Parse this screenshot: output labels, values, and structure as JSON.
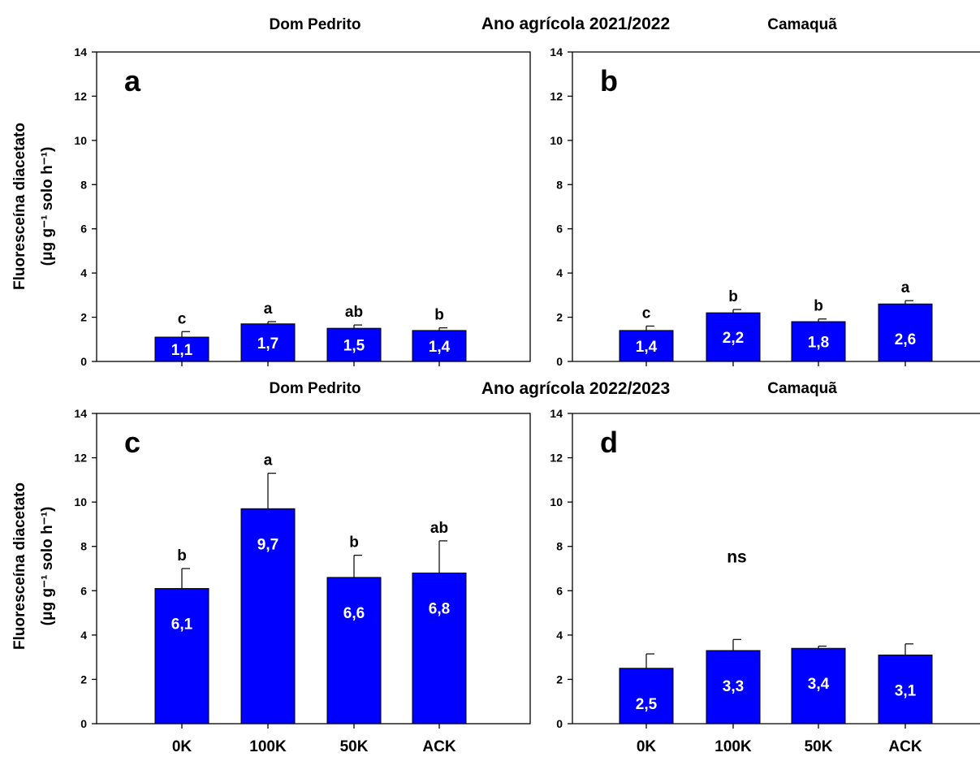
{
  "figure": {
    "row_titles": [
      "Ano agrícola 2021/2022",
      "Ano agrícola 2022/2023"
    ],
    "col_titles": [
      "Dom Pedrito",
      "Camaquã"
    ],
    "ylabel_line1": "Fluoresceína diacetato",
    "ylabel_line2": "(μg g⁻¹ solo h⁻¹)"
  },
  "colors": {
    "bar": "#0000ff",
    "axis": "#000000",
    "label_in_bar": "#ffffff"
  },
  "chart_data": [
    {
      "type": "bar",
      "panel_letter": "a",
      "categories": [
        "0K",
        "100K",
        "50K",
        "ACK"
      ],
      "values": [
        1.1,
        1.7,
        1.5,
        1.4
      ],
      "errors": [
        0.25,
        0.1,
        0.15,
        0.12
      ],
      "value_labels": [
        "1,1",
        "1,7",
        "1,5",
        "1,4"
      ],
      "letters": [
        "c",
        "a",
        "ab",
        "b"
      ],
      "ylim": [
        0,
        14
      ],
      "yticks": [
        0,
        2,
        4,
        6,
        8,
        10,
        12,
        14
      ]
    },
    {
      "type": "bar",
      "panel_letter": "b",
      "categories": [
        "0K",
        "100K",
        "50K",
        "ACK"
      ],
      "values": [
        1.4,
        2.2,
        1.8,
        2.6
      ],
      "errors": [
        0.2,
        0.15,
        0.12,
        0.15
      ],
      "value_labels": [
        "1,4",
        "2,2",
        "1,8",
        "2,6"
      ],
      "letters": [
        "c",
        "b",
        "b",
        "a"
      ],
      "ylim": [
        0,
        14
      ],
      "yticks": [
        0,
        2,
        4,
        6,
        8,
        10,
        12,
        14
      ]
    },
    {
      "type": "bar",
      "panel_letter": "c",
      "categories": [
        "0K",
        "100K",
        "50K",
        "ACK"
      ],
      "values": [
        6.1,
        9.7,
        6.6,
        6.8
      ],
      "errors": [
        0.9,
        1.6,
        1.0,
        1.45
      ],
      "value_labels": [
        "6,1",
        "9,7",
        "6,6",
        "6,8"
      ],
      "letters": [
        "b",
        "a",
        "b",
        "ab"
      ],
      "ylim": [
        0,
        14
      ],
      "yticks": [
        0,
        2,
        4,
        6,
        8,
        10,
        12,
        14
      ]
    },
    {
      "type": "bar",
      "panel_letter": "d",
      "categories": [
        "0K",
        "100K",
        "50K",
        "ACK"
      ],
      "values": [
        2.5,
        3.3,
        3.4,
        3.1
      ],
      "errors": [
        0.65,
        0.5,
        0.1,
        0.5
      ],
      "value_labels": [
        "2,5",
        "3,3",
        "3,4",
        "3,1"
      ],
      "letters": [
        "",
        "",
        "",
        ""
      ],
      "note": "ns",
      "ylim": [
        0,
        14
      ],
      "yticks": [
        0,
        2,
        4,
        6,
        8,
        10,
        12,
        14
      ]
    }
  ]
}
